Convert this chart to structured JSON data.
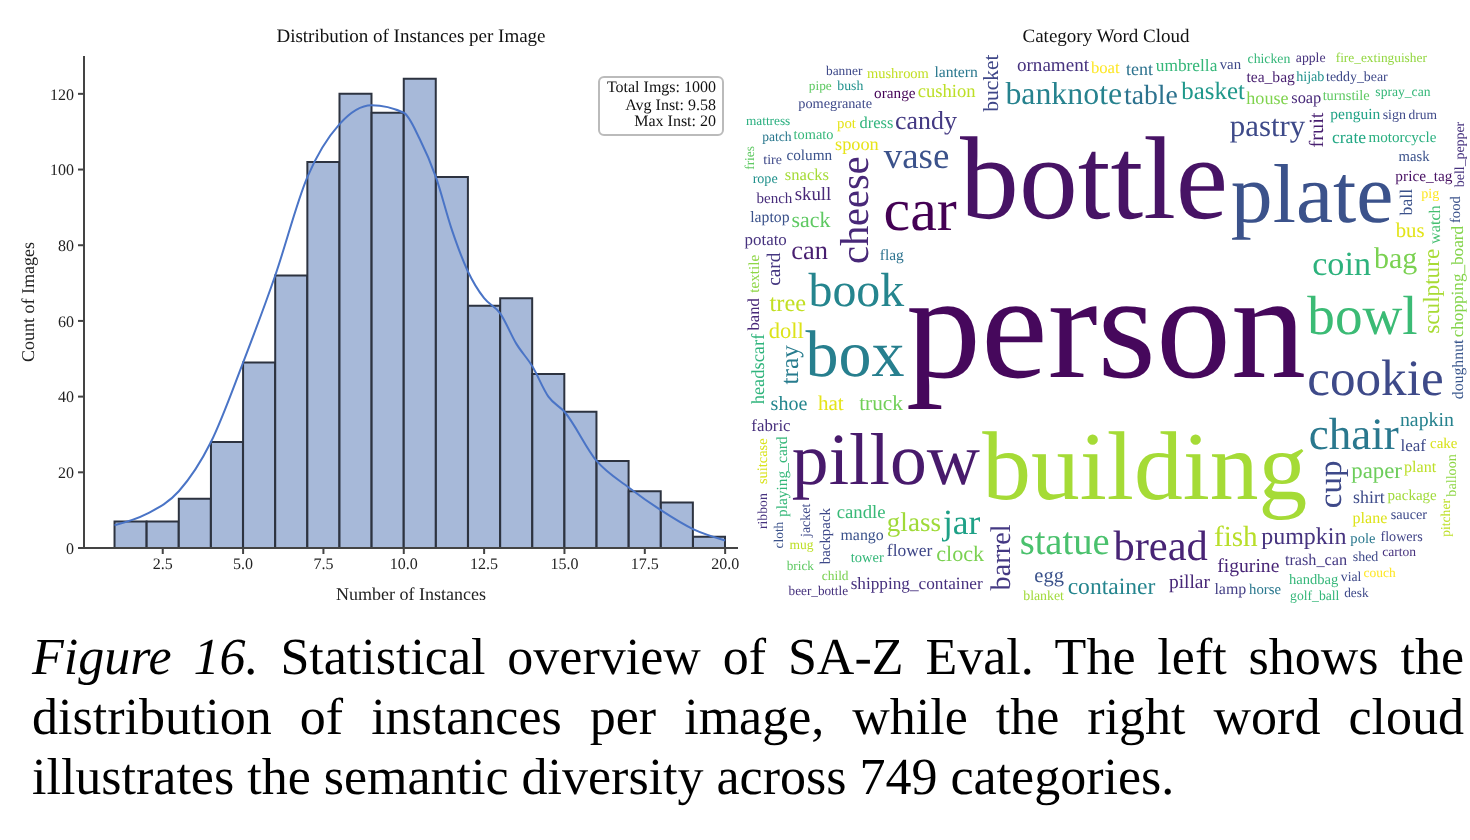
{
  "chart_data": [
    {
      "type": "histogram",
      "title": "Distribution of Instances per Image",
      "xlabel": "Number of Instances",
      "ylabel": "Count of Images",
      "bins": [
        1,
        2,
        3,
        4,
        5,
        6,
        7,
        8,
        9,
        10,
        11,
        12,
        13,
        14,
        15,
        16,
        17,
        18,
        19,
        20
      ],
      "values": [
        7,
        7,
        13,
        28,
        49,
        72,
        102,
        120,
        115,
        124,
        98,
        64,
        66,
        46,
        36,
        23,
        15,
        12,
        3
      ],
      "color": "#a7b9d9",
      "series": [
        {
          "type": "line",
          "color": "#4a74c6",
          "x": [
            1,
            2,
            3,
            4,
            5,
            6,
            7,
            8,
            9,
            10,
            10.5,
            11,
            11.5,
            12,
            12.5,
            13,
            13.5,
            14,
            14.5,
            15,
            16,
            17,
            18,
            19,
            20
          ],
          "values": [
            6,
            9,
            15,
            28,
            49,
            72,
            98,
            112,
            117,
            115,
            108,
            98,
            84,
            73,
            66,
            62,
            54,
            48,
            40,
            36,
            23,
            16,
            10,
            5,
            2
          ]
        }
      ],
      "xlim": [
        0.05,
        20.4
      ],
      "ylim": [
        0,
        130
      ],
      "xticks": [
        {
          "value": 2.5,
          "label": "2.5"
        },
        {
          "value": 5,
          "label": "5.0"
        },
        {
          "value": 7.5,
          "label": "7.5"
        },
        {
          "value": 10,
          "label": "10.0"
        },
        {
          "value": 12.5,
          "label": "12.5"
        },
        {
          "value": 15,
          "label": "15.0"
        },
        {
          "value": 17.5,
          "label": "17.5"
        },
        {
          "value": 20,
          "label": "20.0"
        }
      ],
      "yticks": [
        0,
        20,
        40,
        60,
        80,
        100,
        120
      ],
      "annotations": [
        "Total Imgs: 1000",
        "Avg Inst: 9.58",
        "Max Inst: 20"
      ]
    },
    {
      "type": "other",
      "title": "Category Word Cloud",
      "categories": [
        "person",
        "bottle",
        "building",
        "plate",
        "pillow",
        "box",
        "car",
        "bowl",
        "cookie",
        "book",
        "chair",
        "bread",
        "cheese",
        "statue",
        "vase",
        "jar",
        "coin",
        "cup",
        "banknote",
        "pastry",
        "bag",
        "fish",
        "barrel",
        "table",
        "glass",
        "can",
        "candy",
        "tray",
        "basket",
        "tree",
        "pumpkin",
        "container",
        "sculpture",
        "paper",
        "doll",
        "clock",
        "sack",
        "bucket",
        "truck",
        "hat",
        "bus",
        "egg",
        "fruit",
        "shoe",
        "napkin",
        "figurine",
        "pillar",
        "card",
        "ornament",
        "skull",
        "candle",
        "cushion",
        "headscarf",
        "spoon",
        "house",
        "tent",
        "shirt",
        "ball",
        "crate",
        "flower",
        "umbrella",
        "shipping_container",
        "chopping_board",
        "leaf",
        "potato",
        "fabric",
        "boat",
        "band",
        "snacks",
        "dress",
        "soap",
        "trash_can",
        "watch",
        "plant",
        "plane",
        "lamp",
        "mango",
        "doughnut",
        "laptop",
        "lantern",
        "tea_bag",
        "penguin",
        "playing_card",
        "flag",
        "price_tag",
        "column",
        "orange",
        "textile",
        "motorcycle",
        "bench",
        "package",
        "cake",
        "backpack",
        "van",
        "pot",
        "horse",
        "mask",
        "food",
        "pole",
        "handbag",
        "tower",
        "mushroom",
        "suitcase",
        "turnstile",
        "tomato",
        "pomegranate",
        "saucer",
        "balloon",
        "hijab",
        "flowers",
        "pig",
        "rope",
        "jacket",
        "shed",
        "sign",
        "tire",
        "teddy_bear",
        "bell_pepper",
        "blanket",
        "chicken",
        "bush",
        "apple",
        "ribbon",
        "vial",
        "golf_ball",
        "patch",
        "spray_can",
        "pitcher",
        "carton",
        "mug",
        "drum",
        "couch",
        "fries",
        "child",
        "banner",
        "fire_extinguisher",
        "mattress",
        "cloth",
        "pipe",
        "desk",
        "brick",
        "beer_bottle"
      ],
      "colors": [
        "#46085c",
        "#471365",
        "#a5db36",
        "#3b528b",
        "#481a6c",
        "#277f8e",
        "#440154",
        "#3bbb75",
        "#3e4a89",
        "#25858e",
        "#2a788e",
        "#482475",
        "#482878",
        "#4ac16d",
        "#3b528b",
        "#1fa187",
        "#2db27d",
        "#3e4989",
        "#26828e",
        "#3e4a89",
        "#7ad151",
        "#b8de29",
        "#443983",
        "#2c728e",
        "#a0da39",
        "#481f70",
        "#443a83",
        "#287c8e",
        "#1f988b",
        "#c2df23",
        "#46337f",
        "#25858e",
        "#a8db34",
        "#6ccd5a",
        "#dde318",
        "#7ad151",
        "#5ec962",
        "#3f4788",
        "#70cf57",
        "#e5e419",
        "#e2e418",
        "#3b528b",
        "#481f70",
        "#24868e",
        "#26828e",
        "#482576",
        "#482878",
        "#453781",
        "#46327e",
        "#482878",
        "#38b977",
        "#bddf26",
        "#2fb47c",
        "#e7e419",
        "#7fd34e",
        "#2c728e",
        "#3e4c8a",
        "#3b528b",
        "#22a884",
        "#3f4788",
        "#35b779",
        "#46307e",
        "#84d44b",
        "#3e4989",
        "#46327e",
        "#472f7d",
        "#fde725",
        "#482878",
        "#a5db36",
        "#2fb47c",
        "#482979",
        "#443983",
        "#44bf70",
        "#bddf26",
        "#dde318",
        "#433e85",
        "#3b528b",
        "#39568c",
        "#3b528b",
        "#2a788e",
        "#481f70",
        "#20a386",
        "#35b779",
        "#2c728e",
        "#471063",
        "#3b528b",
        "#450457",
        "#8ed645",
        "#29af7f",
        "#472d7b",
        "#a0da39",
        "#d8e219",
        "#3e4989",
        "#3e4989",
        "#e5e419",
        "#2a788e",
        "#3b528b",
        "#3b528b",
        "#2a788e",
        "#35b779",
        "#35b779",
        "#c2df23",
        "#d8e219",
        "#5ec962",
        "#35b779",
        "#3e4989",
        "#3e4989",
        "#8ed645",
        "#21918c",
        "#414487",
        "#fde725",
        "#21918c",
        "#3e4989",
        "#3e4989",
        "#3e4989",
        "#3e4989",
        "#3e4989",
        "#46327e",
        "#a0da39",
        "#35b779",
        "#21918c",
        "#46327e",
        "#46327e",
        "#3e4989",
        "#35b779",
        "#2a788e",
        "#35b779",
        "#bddf26",
        "#46327e",
        "#bddf26",
        "#3e4989",
        "#fde725",
        "#5ec962",
        "#7ad151",
        "#3e4989",
        "#93d741",
        "#29af7f",
        "#3b528b",
        "#5ec962",
        "#3e4989",
        "#5ec962",
        "#46327e"
      ],
      "annotations": [
        "Figure 16. Statistical overview of SA-Z Eval. The left shows the distribution of instances per image, while the right word cloud illustrates the semantic diversity across 749 categories."
      ]
    }
  ]
}
